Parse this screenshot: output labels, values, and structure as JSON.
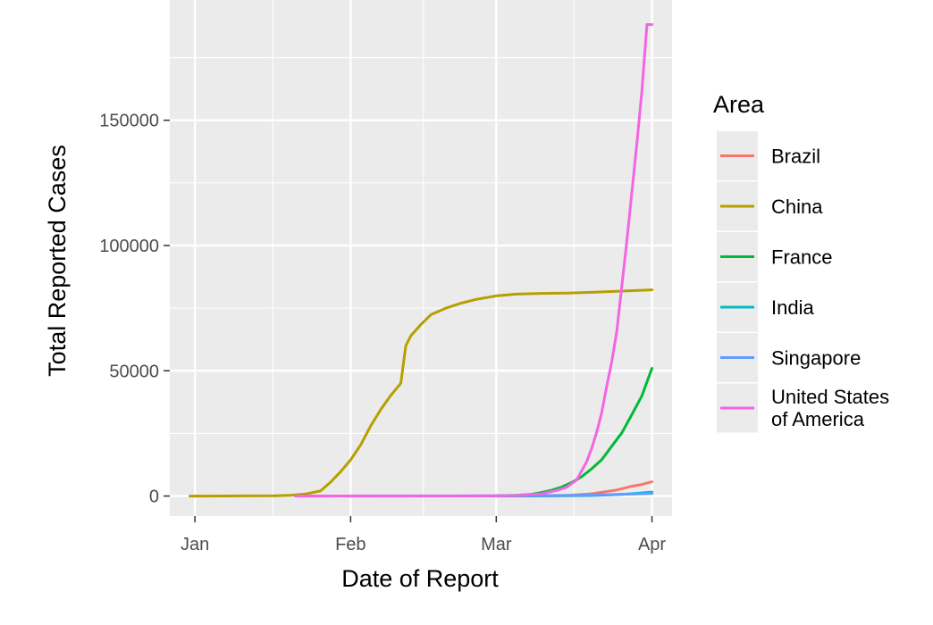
{
  "chart_data": {
    "type": "line",
    "title": "",
    "xlabel": "Date of Report",
    "ylabel": "Total Reported Cases",
    "x_ticks": [
      {
        "label": "Jan",
        "value": "2020-01-01"
      },
      {
        "label": "Feb",
        "value": "2020-02-01"
      },
      {
        "label": "Mar",
        "value": "2020-03-01"
      },
      {
        "label": "Apr",
        "value": "2020-04-01"
      }
    ],
    "y_ticks": [
      0,
      50000,
      100000,
      150000
    ],
    "xlim": [
      "2019-12-27",
      "2020-04-05"
    ],
    "ylim": [
      -8000,
      198000
    ],
    "grid": true,
    "legend": {
      "title": "Area",
      "position": "right"
    },
    "series": [
      {
        "name": "Brazil",
        "label_lines": [
          "Brazil"
        ],
        "color": "#F8766D",
        "x": [
          "2020-03-01",
          "2020-03-10",
          "2020-03-15",
          "2020-03-20",
          "2020-03-25",
          "2020-03-28",
          "2020-03-30",
          "2020-04-01"
        ],
        "y": [
          0,
          30,
          200,
          900,
          2400,
          3900,
          4600,
          5700
        ]
      },
      {
        "name": "China",
        "label_lines": [
          "China"
        ],
        "color": "#B79F00",
        "x": [
          "2019-12-31",
          "2020-01-10",
          "2020-01-17",
          "2020-01-20",
          "2020-01-23",
          "2020-01-26",
          "2020-01-28",
          "2020-01-30",
          "2020-02-01",
          "2020-02-03",
          "2020-02-05",
          "2020-02-07",
          "2020-02-09",
          "2020-02-11",
          "2020-02-12",
          "2020-02-13",
          "2020-02-15",
          "2020-02-17",
          "2020-02-20",
          "2020-02-23",
          "2020-02-26",
          "2020-03-01",
          "2020-03-05",
          "2020-03-10",
          "2020-03-15",
          "2020-03-20",
          "2020-03-25",
          "2020-04-01"
        ],
        "y": [
          0,
          40,
          80,
          300,
          800,
          2000,
          5500,
          9700,
          14400,
          20400,
          28000,
          34500,
          40200,
          45000,
          60000,
          64000,
          68500,
          72400,
          75000,
          77000,
          78500,
          79900,
          80600,
          80900,
          81000,
          81300,
          81700,
          82300
        ]
      },
      {
        "name": "France",
        "label_lines": [
          "France"
        ],
        "color": "#00BA38",
        "x": [
          "2020-03-01",
          "2020-03-05",
          "2020-03-08",
          "2020-03-10",
          "2020-03-12",
          "2020-03-14",
          "2020-03-16",
          "2020-03-18",
          "2020-03-20",
          "2020-03-22",
          "2020-03-24",
          "2020-03-26",
          "2020-03-28",
          "2020-03-30",
          "2020-04-01"
        ],
        "y": [
          100,
          300,
          700,
          1400,
          2300,
          3600,
          5400,
          7700,
          10900,
          14500,
          19900,
          25200,
          32500,
          40000,
          51000
        ]
      },
      {
        "name": "India",
        "label_lines": [
          "India"
        ],
        "color": "#00BFC4",
        "x": [
          "2020-01-31",
          "2020-03-04",
          "2020-03-15",
          "2020-03-20",
          "2020-03-25",
          "2020-03-28",
          "2020-04-01"
        ],
        "y": [
          1,
          28,
          100,
          200,
          560,
          900,
          1600
        ]
      },
      {
        "name": "Singapore",
        "label_lines": [
          "Singapore"
        ],
        "color": "#619CFF",
        "x": [
          "2020-01-24",
          "2020-02-10",
          "2020-03-01",
          "2020-03-15",
          "2020-03-20",
          "2020-03-25",
          "2020-04-01"
        ],
        "y": [
          1,
          45,
          106,
          226,
          385,
          631,
          1000
        ]
      },
      {
        "name": "United States of America",
        "label_lines": [
          "United States",
          "of America"
        ],
        "color": "#F564E3",
        "x": [
          "2020-01-21",
          "2020-03-01",
          "2020-03-05",
          "2020-03-10",
          "2020-03-13",
          "2020-03-15",
          "2020-03-17",
          "2020-03-19",
          "2020-03-20",
          "2020-03-21",
          "2020-03-22",
          "2020-03-23",
          "2020-03-24",
          "2020-03-25",
          "2020-03-26",
          "2020-03-27",
          "2020-03-28",
          "2020-03-29",
          "2020-03-30",
          "2020-03-31",
          "2020-04-01"
        ],
        "y": [
          1,
          60,
          200,
          900,
          2200,
          3500,
          6400,
          13700,
          19100,
          25500,
          33300,
          43800,
          53700,
          65800,
          83800,
          101700,
          121100,
          140900,
          161800,
          188200,
          188200
        ]
      }
    ]
  }
}
